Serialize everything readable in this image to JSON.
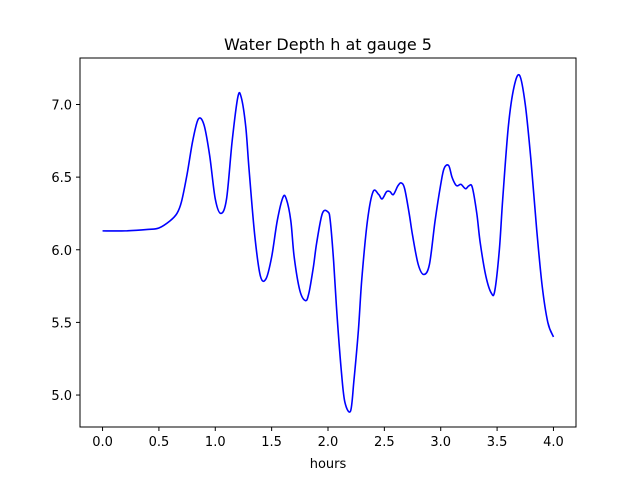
{
  "chart_data": {
    "type": "line",
    "title": "Water Depth h at gauge 5",
    "xlabel": "hours",
    "ylabel": "",
    "xlim": [
      -0.2,
      4.2
    ],
    "ylim": [
      4.78,
      7.32
    ],
    "xticks": [
      0.0,
      0.5,
      1.0,
      1.5,
      2.0,
      2.5,
      3.0,
      3.5,
      4.0
    ],
    "xtick_labels": [
      "0.0",
      "0.5",
      "1.0",
      "1.5",
      "2.0",
      "2.5",
      "3.0",
      "3.5",
      "4.0"
    ],
    "yticks": [
      5.0,
      5.5,
      6.0,
      6.5,
      7.0
    ],
    "ytick_labels": [
      "5.0",
      "5.5",
      "6.0",
      "6.5",
      "7.0"
    ],
    "grid": false,
    "legend": "none",
    "series": [
      {
        "color": "#0000ff",
        "x": [
          0.0,
          0.2,
          0.4,
          0.5,
          0.6,
          0.66,
          0.7,
          0.75,
          0.8,
          0.85,
          0.9,
          0.95,
          1.0,
          1.05,
          1.1,
          1.15,
          1.2,
          1.23,
          1.27,
          1.3,
          1.35,
          1.4,
          1.45,
          1.5,
          1.55,
          1.6,
          1.63,
          1.67,
          1.7,
          1.75,
          1.8,
          1.83,
          1.87,
          1.9,
          1.95,
          2.0,
          2.02,
          2.05,
          2.08,
          2.12,
          2.15,
          2.2,
          2.23,
          2.27,
          2.3,
          2.35,
          2.4,
          2.45,
          2.48,
          2.52,
          2.55,
          2.58,
          2.62,
          2.65,
          2.68,
          2.72,
          2.75,
          2.8,
          2.85,
          2.9,
          2.95,
          3.0,
          3.03,
          3.07,
          3.1,
          3.13,
          3.15,
          3.18,
          3.22,
          3.25,
          3.28,
          3.32,
          3.35,
          3.4,
          3.45,
          3.48,
          3.52,
          3.55,
          3.6,
          3.65,
          3.7,
          3.75,
          3.8,
          3.85,
          3.9,
          3.95,
          4.0
        ],
        "y": [
          6.13,
          6.13,
          6.14,
          6.15,
          6.2,
          6.25,
          6.33,
          6.52,
          6.75,
          6.9,
          6.86,
          6.65,
          6.35,
          6.25,
          6.35,
          6.75,
          7.05,
          7.05,
          6.85,
          6.55,
          6.1,
          5.82,
          5.8,
          5.95,
          6.2,
          6.36,
          6.35,
          6.2,
          5.95,
          5.72,
          5.65,
          5.7,
          5.88,
          6.05,
          6.25,
          6.26,
          6.2,
          5.92,
          5.55,
          5.15,
          4.95,
          4.89,
          5.1,
          5.45,
          5.8,
          6.2,
          6.4,
          6.38,
          6.35,
          6.4,
          6.4,
          6.38,
          6.44,
          6.46,
          6.42,
          6.25,
          6.1,
          5.9,
          5.83,
          5.9,
          6.2,
          6.45,
          6.56,
          6.58,
          6.5,
          6.45,
          6.44,
          6.45,
          6.42,
          6.44,
          6.43,
          6.25,
          6.05,
          5.82,
          5.7,
          5.72,
          6.0,
          6.35,
          6.85,
          7.12,
          7.2,
          7.0,
          6.62,
          6.15,
          5.75,
          5.5,
          5.4
        ]
      }
    ]
  }
}
